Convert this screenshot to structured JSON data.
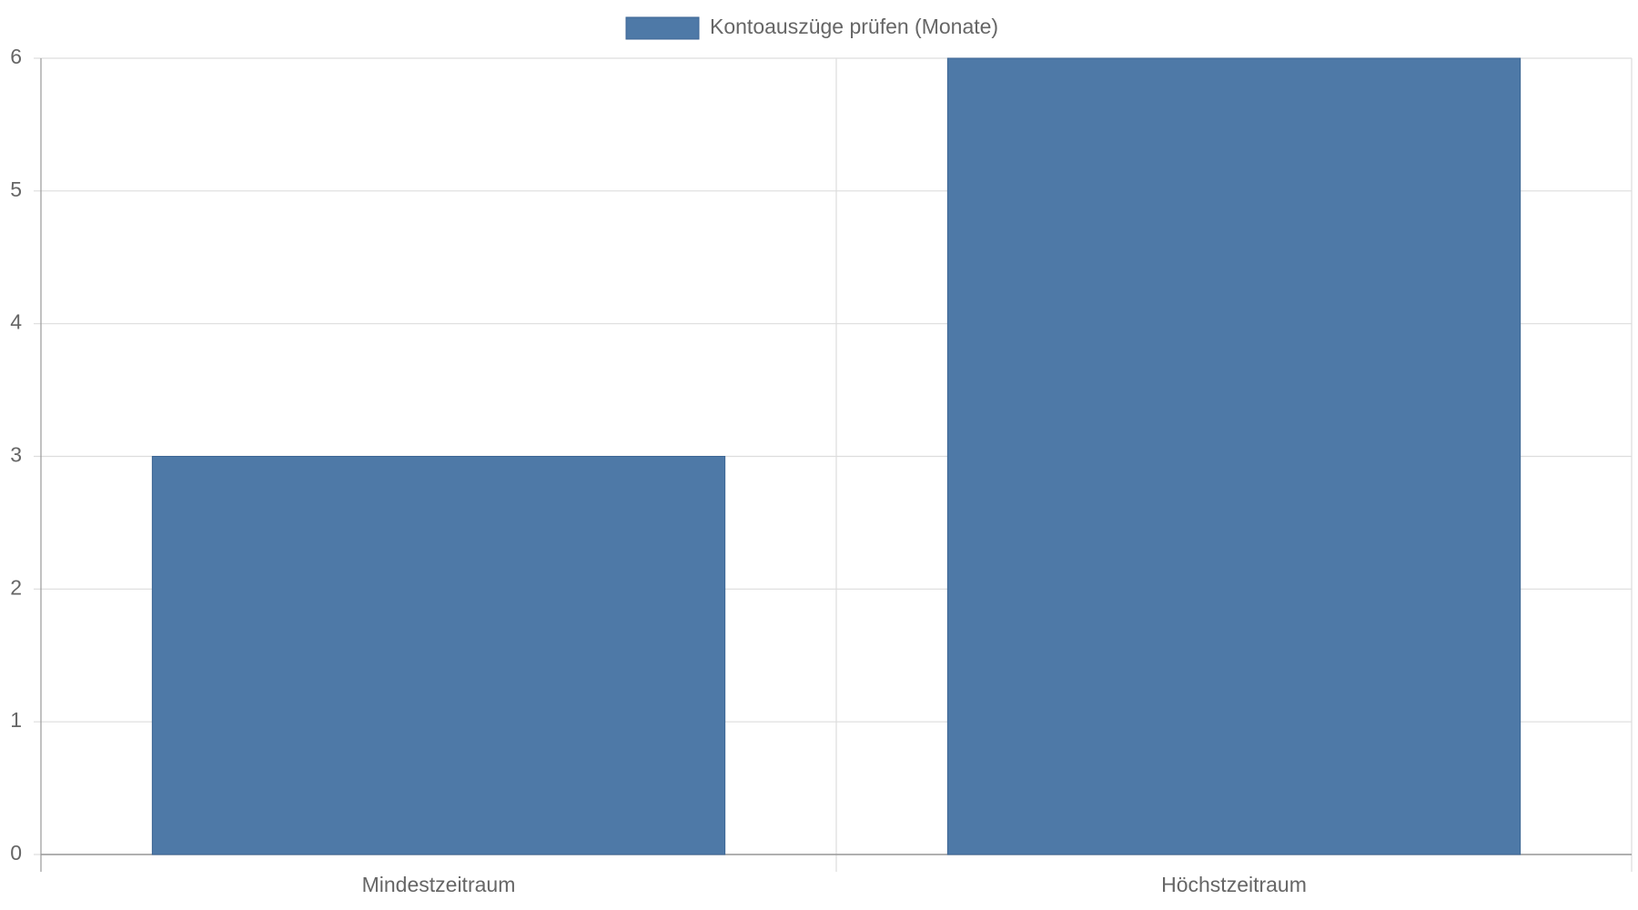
{
  "chart_data": {
    "type": "bar",
    "categories": [
      "Mindestzeitraum",
      "Höchstzeitraum"
    ],
    "series": [
      {
        "name": "Kontoauszüge prüfen (Monate)",
        "color": "#4e79a7",
        "values": [
          3,
          6
        ]
      }
    ],
    "ylim": [
      0,
      6
    ],
    "yticks": [
      0,
      1,
      2,
      3,
      4,
      5,
      6
    ],
    "grid": true,
    "legend": "top"
  }
}
